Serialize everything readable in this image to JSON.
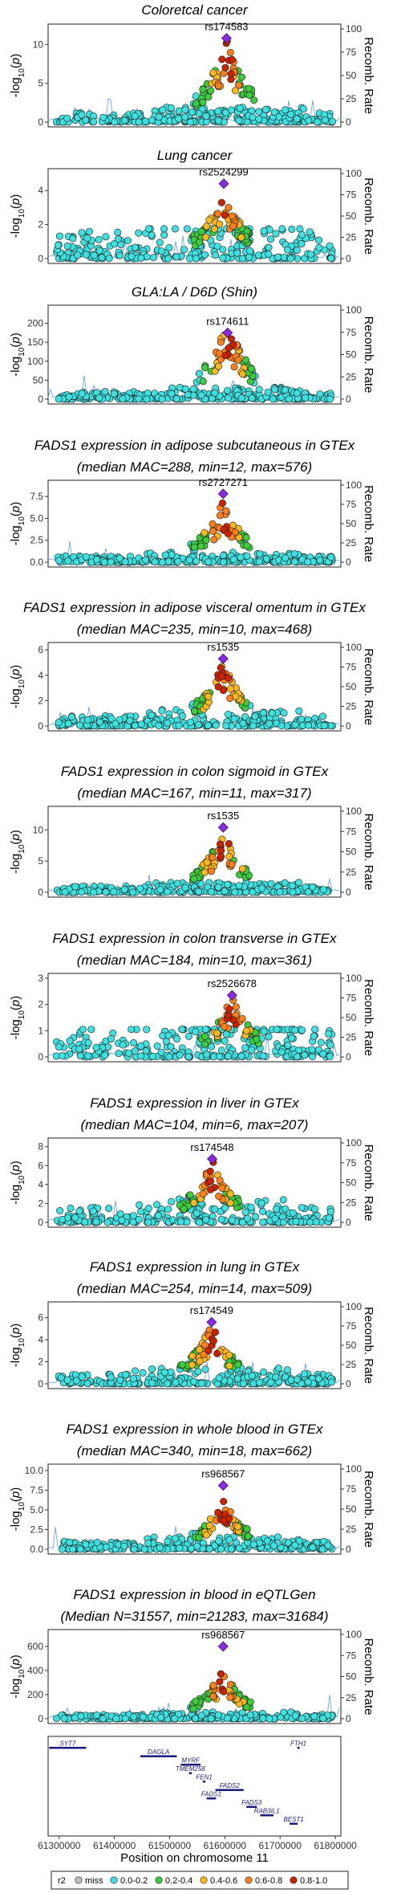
{
  "chart_data": [
    {
      "type": "scatter",
      "title_lines": [
        "Coloretcal cancer"
      ],
      "ylabel": "-log10(p)",
      "y2label": "Recomb. Rate",
      "ylim": [
        0,
        12
      ],
      "yticks": [
        0,
        5,
        10
      ],
      "y2lim": [
        0,
        100
      ],
      "y2ticks": [
        0,
        25,
        50,
        75,
        100
      ],
      "lead_snp": "rs174583",
      "lead": {
        "pos": 61603000,
        "y": 10.8
      },
      "seed": 11,
      "peak_y": 10.5,
      "noise_y": 1.2
    },
    {
      "type": "scatter",
      "title_lines": [
        "Lung cancer"
      ],
      "ylabel": "-log10(p)",
      "y2label": "Recomb. Rate",
      "ylim": [
        0,
        5
      ],
      "yticks": [
        0,
        2,
        4
      ],
      "y2lim": [
        0,
        100
      ],
      "y2ticks": [
        0,
        25,
        50,
        75,
        100
      ],
      "lead_snp": "rs2524299",
      "lead": {
        "pos": 61598000,
        "y": 4.4
      },
      "seed": 23,
      "peak_y": 4.0,
      "noise_y": 1.6
    },
    {
      "type": "scatter",
      "title_lines": [
        "GLA:LA / D6D (Shin)"
      ],
      "ylabel": "-log10(p)",
      "y2label": "Recomb. Rate",
      "ylim": [
        0,
        235
      ],
      "yticks": [
        0,
        50,
        100,
        150,
        200
      ],
      "y2lim": [
        0,
        100
      ],
      "y2ticks": [
        0,
        25,
        50,
        75,
        100
      ],
      "lead_snp": "rs174611",
      "lead": {
        "pos": 61605000,
        "y": 175
      },
      "seed": 37,
      "peak_y": 205,
      "noise_y": 20
    },
    {
      "type": "scatter",
      "title_lines": [
        "FADS1 expression in adipose subcutaneous in GTEx",
        "(median MAC=288, min=12, max=576)"
      ],
      "ylabel": "-log10(p)",
      "y2label": "Recomb. Rate",
      "ylim": [
        0,
        8.8
      ],
      "yticks": [
        0.0,
        2.5,
        5.0,
        7.5
      ],
      "y2lim": [
        0,
        100
      ],
      "y2ticks": [
        0,
        25,
        50,
        75,
        100
      ],
      "lead_snp": "rs2727271",
      "lead": {
        "pos": 61597000,
        "y": 7.8
      },
      "seed": 41,
      "peak_y": 6.8,
      "noise_y": 0.7
    },
    {
      "type": "scatter",
      "title_lines": [
        "FADS1 expression in adipose visceral omentum in GTEx",
        "(median MAC=235, min=10, max=468)"
      ],
      "ylabel": "-log10(p)",
      "y2label": "Recomb. Rate",
      "ylim": [
        0,
        6.2
      ],
      "yticks": [
        0,
        2,
        4,
        6
      ],
      "y2lim": [
        0,
        100
      ],
      "y2ticks": [
        0,
        25,
        50,
        75,
        100
      ],
      "lead_snp": "rs1535",
      "lead": {
        "pos": 61597000,
        "y": 5.3
      },
      "seed": 53,
      "peak_y": 5.1,
      "noise_y": 0.8
    },
    {
      "type": "scatter",
      "title_lines": [
        "FADS1 expression in colon sigmoid in GTEx",
        "(median MAC=167, min=11, max=317)"
      ],
      "ylabel": "-log10(p)",
      "y2label": "Recomb. Rate",
      "ylim": [
        0,
        13
      ],
      "yticks": [
        0,
        5,
        10
      ],
      "y2lim": [
        0,
        100
      ],
      "y2ticks": [
        0,
        25,
        50,
        75,
        100
      ],
      "lead_snp": "rs1535",
      "lead": {
        "pos": 61597000,
        "y": 10.4
      },
      "seed": 61,
      "peak_y": 9.7,
      "noise_y": 1.0
    },
    {
      "type": "scatter",
      "title_lines": [
        "FADS1 expression in colon transverse in GTEx",
        "(median MAC=184, min=10, max=361)"
      ],
      "ylabel": "-log10(p)",
      "y2label": "Recomb. Rate",
      "ylim": [
        0,
        3
      ],
      "yticks": [
        0,
        1,
        2,
        3
      ],
      "y2lim": [
        0,
        100
      ],
      "y2ticks": [
        0,
        25,
        50,
        75,
        100
      ],
      "lead_snp": "rs2526678",
      "lead": {
        "pos": 61613000,
        "y": 2.35
      },
      "seed": 71,
      "peak_y": 2.3,
      "noise_y": 1.2
    },
    {
      "type": "scatter",
      "title_lines": [
        "FADS1 expression in liver in GTEx",
        "(median MAC=104, min=6, max=207)"
      ],
      "ylabel": "-log10(p)",
      "y2label": "Recomb. Rate",
      "ylim": [
        0,
        8.4
      ],
      "yticks": [
        0,
        2,
        4,
        6,
        8
      ],
      "y2lim": [
        0,
        100
      ],
      "y2ticks": [
        0,
        25,
        50,
        75,
        100
      ],
      "lead_snp": "rs174548",
      "lead": {
        "pos": 61577000,
        "y": 6.7
      },
      "seed": 83,
      "peak_y": 6.6,
      "noise_y": 1.6
    },
    {
      "type": "scatter",
      "title_lines": [
        "FADS1 expression in lung in GTEx",
        "(median MAC=254, min=14, max=509)"
      ],
      "ylabel": "-log10(p)",
      "y2label": "Recomb. Rate",
      "ylim": [
        0,
        7
      ],
      "yticks": [
        0,
        2,
        4,
        6
      ],
      "y2lim": [
        0,
        100
      ],
      "y2ticks": [
        0,
        25,
        50,
        75,
        100
      ],
      "lead_snp": "rs174549",
      "lead": {
        "pos": 61576000,
        "y": 5.6
      },
      "seed": 97,
      "peak_y": 5.4,
      "noise_y": 0.9
    },
    {
      "type": "scatter",
      "title_lines": [
        "FADS1 expression in whole blood in GTEx",
        "(median MAC=340, min=18, max=662)"
      ],
      "ylabel": "-log10(p)",
      "y2label": "Recomb. Rate",
      "ylim": [
        0,
        10.2
      ],
      "yticks": [
        0.0,
        2.5,
        5.0,
        7.5,
        10.0
      ],
      "y2lim": [
        0,
        100
      ],
      "y2ticks": [
        0,
        25,
        50,
        75,
        100
      ],
      "lead_snp": "rs968567",
      "lead": {
        "pos": 61597000,
        "y": 8.1
      },
      "seed": 103,
      "peak_y": 6.3,
      "noise_y": 1.0
    },
    {
      "type": "scatter",
      "title_lines": [
        "FADS1 expression in blood in eQTLGen",
        "(Median N=31557, min=21283, max=31684)"
      ],
      "ylabel": "-log10(p)",
      "y2label": "Recomb. Rate",
      "ylim": [
        0,
        700
      ],
      "yticks": [
        0,
        200,
        400,
        600
      ],
      "y2lim": [
        0,
        100
      ],
      "y2ticks": [
        0,
        25,
        50,
        75,
        100
      ],
      "lead_snp": "rs968567",
      "lead": {
        "pos": 61597000,
        "y": 600
      },
      "seed": 113,
      "peak_y": 400,
      "noise_y": 35
    }
  ],
  "genes": {
    "xlabel": "Position on chromosome 11",
    "xlim": [
      61280000,
      61810000
    ],
    "xticks": [
      61300000,
      61400000,
      61500000,
      61600000,
      61700000,
      61800000
    ],
    "tracks": [
      {
        "name": "SYT7",
        "start": 61282000,
        "end": 61349000,
        "row": 0
      },
      {
        "name": "FTH1",
        "start": 61731000,
        "end": 61735000,
        "row": 0
      },
      {
        "name": "DAGLA",
        "start": 61447000,
        "end": 61513000,
        "row": 1
      },
      {
        "name": "MYRF",
        "start": 61520000,
        "end": 61556000,
        "row": 2
      },
      {
        "name": "TMEM258",
        "start": 61535000,
        "end": 61540000,
        "row": 3
      },
      {
        "name": "FEN1",
        "start": 61560000,
        "end": 61565000,
        "row": 4
      },
      {
        "name": "FADS2",
        "start": 61583000,
        "end": 61634000,
        "row": 5
      },
      {
        "name": "FADS1",
        "start": 61567000,
        "end": 61584000,
        "row": 6
      },
      {
        "name": "FADS3",
        "start": 61639000,
        "end": 61658000,
        "row": 7
      },
      {
        "name": "RAB3IL1",
        "start": 61664000,
        "end": 61688000,
        "row": 8
      },
      {
        "name": "BEST1",
        "start": 61717000,
        "end": 61732000,
        "row": 9
      }
    ]
  },
  "legend": {
    "title": "r2",
    "items": [
      {
        "label": "miss",
        "color": "#bebebe"
      },
      {
        "label": "0.0-0.2",
        "color": "#3fe0e0"
      },
      {
        "label": "0.2-0.4",
        "color": "#3ccc3c"
      },
      {
        "label": "0.4-0.6",
        "color": "#ffb81c"
      },
      {
        "label": "0.6-0.8",
        "color": "#ff7f1a"
      },
      {
        "label": "0.8-1.0",
        "color": "#cc2200"
      }
    ],
    "lead_color": "#8a2be2"
  }
}
